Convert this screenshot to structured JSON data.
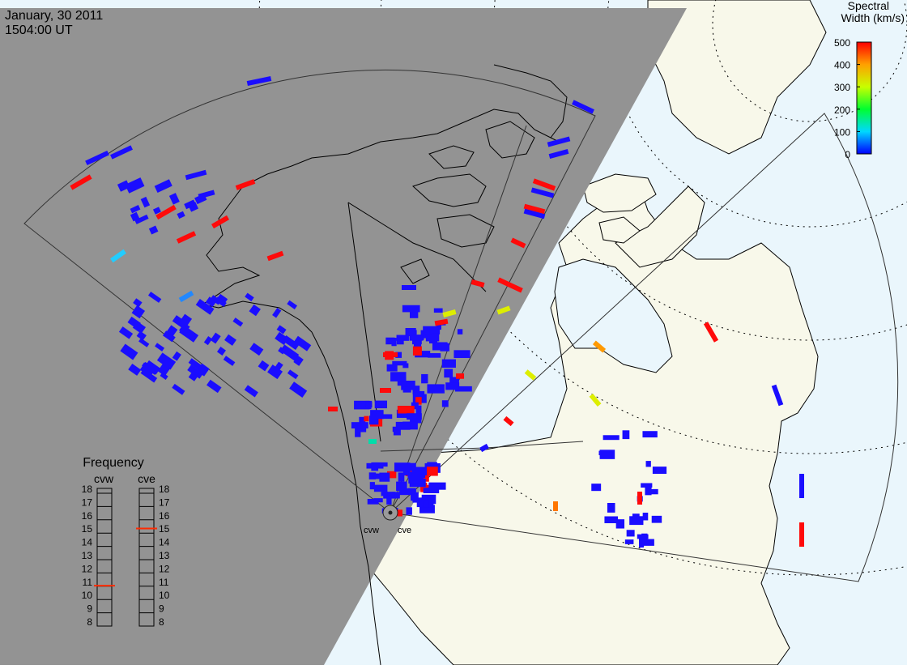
{
  "header": {
    "date": "January, 30 2011",
    "time": "1504:00 UT"
  },
  "colorbar": {
    "title_line1": "Spectral",
    "title_line2": "Width (km/s)",
    "ticks": [
      "500",
      "400",
      "300",
      "200",
      "100",
      "0"
    ]
  },
  "frequency_panel": {
    "title": "Frequency",
    "radars": [
      {
        "code": "cvw",
        "frequency_mhz": 10.8,
        "marker_color": "#ff2a00"
      },
      {
        "code": "cve",
        "frequency_mhz": 15.1,
        "marker_color": "#ff2a00"
      }
    ],
    "scale": [
      "18",
      "17",
      "16",
      "15",
      "14",
      "13",
      "12",
      "11",
      "10",
      "9",
      "8"
    ]
  },
  "site_labels": {
    "west": "cvw",
    "east": "cve"
  },
  "colors": {
    "night": "#939393",
    "land": "#f8f8ea",
    "ocean": "#eaf6fc",
    "echo_low": "#1a0dff",
    "echo_high": "#ff0a0a"
  }
}
